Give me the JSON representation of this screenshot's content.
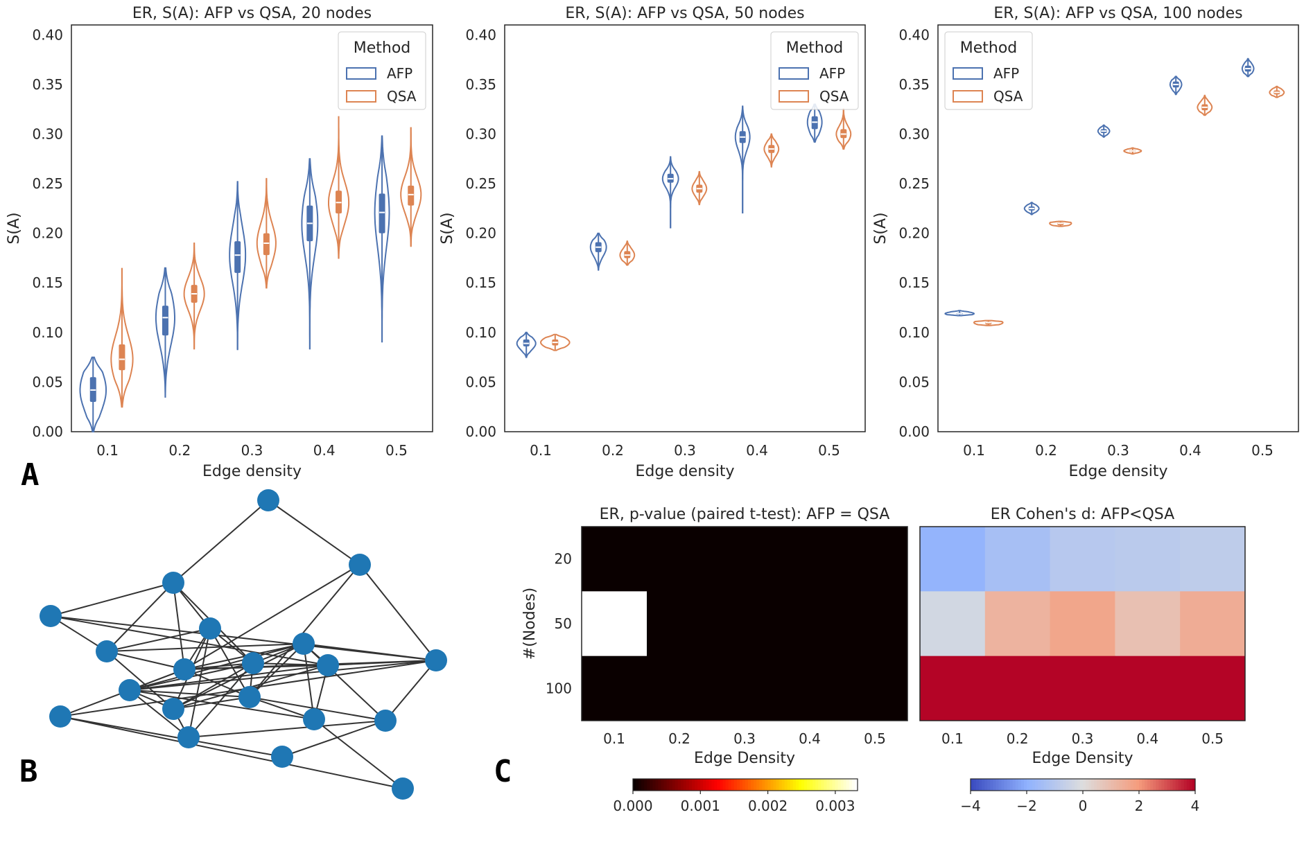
{
  "panel_labels": [
    "A",
    "B",
    "C"
  ],
  "colors": {
    "AFP": "#4c72b0",
    "QSA": "#dd8452",
    "node": "#1f77b4",
    "edge": "#333333"
  },
  "chart_data": [
    {
      "type": "violin",
      "title": "ER, S(A): AFP vs QSA, 20 nodes",
      "xlabel": "Edge density",
      "ylabel": "S(A)",
      "categories": [
        "0.1",
        "0.2",
        "0.3",
        "0.4",
        "0.5"
      ],
      "ylim": [
        0,
        0.41
      ],
      "yticks": [
        "0.00",
        "0.05",
        "0.10",
        "0.15",
        "0.20",
        "0.25",
        "0.30",
        "0.35",
        "0.40"
      ],
      "legend": {
        "title": "Method",
        "position": "top-right",
        "items": [
          "AFP",
          "QSA"
        ]
      },
      "series": [
        {
          "name": "AFP",
          "violins": [
            {
              "min": 0.0,
              "q1": 0.03,
              "median": 0.042,
              "q3": 0.055,
              "max": 0.075,
              "halfwidth": 0.18
            },
            {
              "min": 0.035,
              "q1": 0.097,
              "median": 0.115,
              "q3": 0.127,
              "max": 0.165,
              "halfwidth": 0.13
            },
            {
              "min": 0.083,
              "q1": 0.16,
              "median": 0.178,
              "q3": 0.192,
              "max": 0.252,
              "halfwidth": 0.11
            },
            {
              "min": 0.083,
              "q1": 0.192,
              "median": 0.21,
              "q3": 0.228,
              "max": 0.275,
              "halfwidth": 0.11
            },
            {
              "min": 0.09,
              "q1": 0.2,
              "median": 0.221,
              "q3": 0.24,
              "max": 0.298,
              "halfwidth": 0.1
            }
          ]
        },
        {
          "name": "QSA",
          "violins": [
            {
              "min": 0.025,
              "q1": 0.062,
              "median": 0.073,
              "q3": 0.088,
              "max": 0.165,
              "halfwidth": 0.15
            },
            {
              "min": 0.083,
              "q1": 0.13,
              "median": 0.139,
              "q3": 0.148,
              "max": 0.19,
              "halfwidth": 0.14
            },
            {
              "min": 0.145,
              "q1": 0.178,
              "median": 0.19,
              "q3": 0.2,
              "max": 0.255,
              "halfwidth": 0.13
            },
            {
              "min": 0.175,
              "q1": 0.22,
              "median": 0.231,
              "q3": 0.243,
              "max": 0.318,
              "halfwidth": 0.14
            },
            {
              "min": 0.187,
              "q1": 0.228,
              "median": 0.239,
              "q3": 0.248,
              "max": 0.307,
              "halfwidth": 0.14
            }
          ]
        }
      ]
    },
    {
      "type": "violin",
      "title": "ER, S(A): AFP vs QSA, 50 nodes",
      "xlabel": "Edge density",
      "ylabel": "S(A)",
      "categories": [
        "0.1",
        "0.2",
        "0.3",
        "0.4",
        "0.5"
      ],
      "ylim": [
        0,
        0.41
      ],
      "yticks": [
        "0.00",
        "0.05",
        "0.10",
        "0.15",
        "0.20",
        "0.25",
        "0.30",
        "0.35",
        "0.40"
      ],
      "legend": {
        "title": "Method",
        "position": "top-right",
        "items": [
          "AFP",
          "QSA"
        ]
      },
      "series": [
        {
          "name": "AFP",
          "violins": [
            {
              "min": 0.075,
              "q1": 0.086,
              "median": 0.089,
              "q3": 0.093,
              "max": 0.1,
              "halfwidth": 0.13
            },
            {
              "min": 0.163,
              "q1": 0.181,
              "median": 0.186,
              "q3": 0.191,
              "max": 0.2,
              "halfwidth": 0.11
            },
            {
              "min": 0.205,
              "q1": 0.251,
              "median": 0.255,
              "q3": 0.26,
              "max": 0.277,
              "halfwidth": 0.11
            },
            {
              "min": 0.22,
              "q1": 0.291,
              "median": 0.297,
              "q3": 0.303,
              "max": 0.328,
              "halfwidth": 0.1
            },
            {
              "min": 0.292,
              "q1": 0.305,
              "median": 0.312,
              "q3": 0.318,
              "max": 0.33,
              "halfwidth": 0.1
            }
          ]
        },
        {
          "name": "QSA",
          "violins": [
            {
              "min": 0.082,
              "q1": 0.087,
              "median": 0.09,
              "q3": 0.093,
              "max": 0.098,
              "halfwidth": 0.2
            },
            {
              "min": 0.168,
              "q1": 0.175,
              "median": 0.178,
              "q3": 0.182,
              "max": 0.192,
              "halfwidth": 0.1
            },
            {
              "min": 0.229,
              "q1": 0.241,
              "median": 0.245,
              "q3": 0.249,
              "max": 0.262,
              "halfwidth": 0.1
            },
            {
              "min": 0.267,
              "q1": 0.281,
              "median": 0.285,
              "q3": 0.289,
              "max": 0.3,
              "halfwidth": 0.1
            },
            {
              "min": 0.285,
              "q1": 0.296,
              "median": 0.3,
              "q3": 0.305,
              "max": 0.326,
              "halfwidth": 0.1
            }
          ]
        }
      ]
    },
    {
      "type": "violin",
      "title": "ER, S(A): AFP vs QSA, 100 nodes",
      "xlabel": "Edge density",
      "ylabel": "S(A)",
      "categories": [
        "0.1",
        "0.2",
        "0.3",
        "0.4",
        "0.5"
      ],
      "ylim": [
        0,
        0.41
      ],
      "yticks": [
        "0.00",
        "0.05",
        "0.10",
        "0.15",
        "0.20",
        "0.25",
        "0.30",
        "0.35",
        "0.40"
      ],
      "legend": {
        "title": "Method",
        "position": "top-left",
        "items": [
          "AFP",
          "QSA"
        ]
      },
      "series": [
        {
          "name": "AFP",
          "violins": [
            {
              "min": 0.117,
              "q1": 0.118,
              "median": 0.119,
              "q3": 0.12,
              "max": 0.122,
              "halfwidth": 0.2
            },
            {
              "min": 0.219,
              "q1": 0.223,
              "median": 0.225,
              "q3": 0.227,
              "max": 0.231,
              "halfwidth": 0.1
            },
            {
              "min": 0.297,
              "q1": 0.301,
              "median": 0.303,
              "q3": 0.305,
              "max": 0.309,
              "halfwidth": 0.08
            },
            {
              "min": 0.34,
              "q1": 0.347,
              "median": 0.35,
              "q3": 0.353,
              "max": 0.358,
              "halfwidth": 0.08
            },
            {
              "min": 0.358,
              "q1": 0.363,
              "median": 0.366,
              "q3": 0.369,
              "max": 0.376,
              "halfwidth": 0.08
            }
          ]
        },
        {
          "name": "QSA",
          "violins": [
            {
              "min": 0.107,
              "q1": 0.108,
              "median": 0.11,
              "q3": 0.111,
              "max": 0.112,
              "halfwidth": 0.2
            },
            {
              "min": 0.207,
              "q1": 0.208,
              "median": 0.21,
              "q3": 0.211,
              "max": 0.212,
              "halfwidth": 0.15
            },
            {
              "min": 0.28,
              "q1": 0.282,
              "median": 0.283,
              "q3": 0.284,
              "max": 0.286,
              "halfwidth": 0.12
            },
            {
              "min": 0.319,
              "q1": 0.324,
              "median": 0.327,
              "q3": 0.33,
              "max": 0.339,
              "halfwidth": 0.1
            },
            {
              "min": 0.337,
              "q1": 0.34,
              "median": 0.342,
              "q3": 0.344,
              "max": 0.348,
              "halfwidth": 0.1
            }
          ]
        }
      ]
    },
    {
      "type": "heatmap",
      "title": "ER, p-value (paired t-test): AFP = QSA",
      "xlabel": "Edge Density",
      "ylabel": "#(Nodes)",
      "x": [
        "0.1",
        "0.2",
        "0.3",
        "0.4",
        "0.5"
      ],
      "y": [
        "20",
        "50",
        "100"
      ],
      "values": [
        [
          0,
          0,
          0,
          0,
          0
        ],
        [
          0.0034,
          0,
          0,
          0,
          0
        ],
        [
          0,
          0,
          0,
          0,
          0
        ]
      ],
      "colorbar": {
        "cmap": "hot",
        "vmin": 0,
        "vmax": 0.00333,
        "ticks": [
          "0.000",
          "0.001",
          "0.002",
          "0.003"
        ]
      }
    },
    {
      "type": "heatmap",
      "title": "ER Cohen's d: AFP<QSA",
      "xlabel": "Edge Density",
      "ylabel": "",
      "x": [
        "0.1",
        "0.2",
        "0.3",
        "0.4",
        "0.5"
      ],
      "y": [
        "20",
        "50",
        "100"
      ],
      "values": [
        [
          -1.9,
          -1.4,
          -1.0,
          -0.9,
          -0.8
        ],
        [
          -0.3,
          1.3,
          1.7,
          0.9,
          1.5
        ],
        [
          4.0,
          4.0,
          4.0,
          4.0,
          4.0
        ]
      ],
      "colorbar": {
        "cmap": "coolwarm",
        "vmin": -4,
        "vmax": 4,
        "ticks": [
          "−4",
          "−2",
          "0",
          "2",
          "4"
        ]
      }
    }
  ],
  "network": {
    "nodes": 20,
    "edges": [
      [
        0,
        2
      ],
      [
        0,
        1
      ],
      [
        2,
        3
      ],
      [
        2,
        5
      ],
      [
        2,
        4
      ],
      [
        2,
        7
      ],
      [
        2,
        6
      ],
      [
        3,
        4
      ],
      [
        3,
        9
      ],
      [
        1,
        10
      ],
      [
        1,
        13
      ],
      [
        1,
        6
      ],
      [
        4,
        8
      ],
      [
        4,
        12
      ],
      [
        4,
        5
      ],
      [
        4,
        6
      ],
      [
        5,
        6
      ],
      [
        5,
        7
      ],
      [
        5,
        12
      ],
      [
        5,
        13
      ],
      [
        5,
        15
      ],
      [
        6,
        7
      ],
      [
        6,
        8
      ],
      [
        6,
        9
      ],
      [
        6,
        10
      ],
      [
        6,
        11
      ],
      [
        6,
        13
      ],
      [
        6,
        14
      ],
      [
        7,
        8
      ],
      [
        7,
        9
      ],
      [
        7,
        11
      ],
      [
        7,
        12
      ],
      [
        7,
        13
      ],
      [
        7,
        15
      ],
      [
        8,
        9
      ],
      [
        8,
        10
      ],
      [
        8,
        11
      ],
      [
        8,
        12
      ],
      [
        8,
        13
      ],
      [
        8,
        16
      ],
      [
        8,
        17
      ],
      [
        9,
        10
      ],
      [
        9,
        11
      ],
      [
        9,
        12
      ],
      [
        9,
        16
      ],
      [
        10,
        11
      ],
      [
        10,
        14
      ],
      [
        10,
        17
      ],
      [
        11,
        12
      ],
      [
        11,
        13
      ],
      [
        11,
        15
      ],
      [
        11,
        16
      ],
      [
        12,
        13
      ],
      [
        12,
        15
      ],
      [
        13,
        16
      ],
      [
        13,
        17
      ],
      [
        14,
        19
      ],
      [
        14,
        18
      ],
      [
        15,
        17
      ],
      [
        16,
        19
      ],
      [
        17,
        18
      ],
      [
        3,
        10
      ]
    ]
  }
}
